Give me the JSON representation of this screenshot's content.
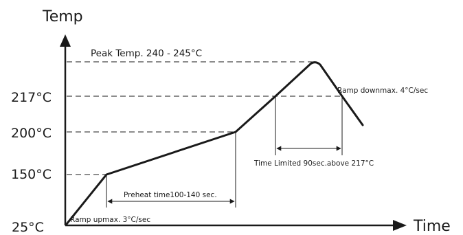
{
  "axes": {
    "y_title": "Temp",
    "x_title": "Time"
  },
  "temperature_levels": {
    "t25": "25°C",
    "t150": "150°C",
    "t200": "200°C",
    "t217": "217°C"
  },
  "annotations": {
    "peak": "Peak Temp. 240 - 245°C",
    "ramp_up": "Ramp upmax. 3°C/sec",
    "preheat": "Preheat time100-140 sec.",
    "time_limited": "Time Limited 90sec.above 217°C",
    "ramp_down": "Ramp downmax. 4°C/sec"
  },
  "colors": {
    "ink": "#1a1a1a",
    "background": "#ffffff"
  }
}
